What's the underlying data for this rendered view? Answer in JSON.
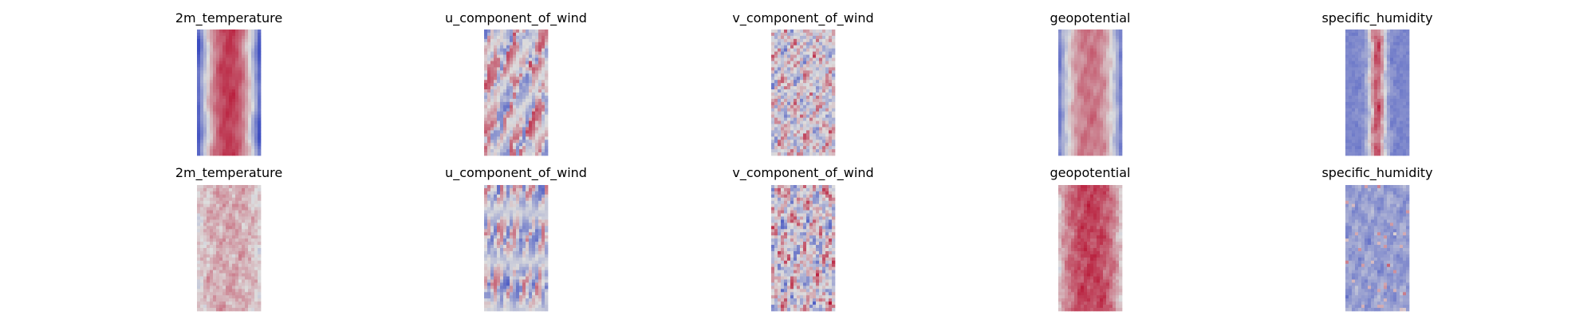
{
  "chart_data": [
    {
      "type": "heatmap",
      "title": "2m_temperature",
      "colormap": "coolwarm",
      "colors": [
        "#3b4cc0",
        "#dddddd",
        "#b40426"
      ],
      "grid": false,
      "axes_visible": false,
      "pattern": "warm-band",
      "seed": 11
    },
    {
      "type": "heatmap",
      "title": "u_component_of_wind",
      "colormap": "coolwarm",
      "colors": [
        "#3b4cc0",
        "#dddddd",
        "#b40426"
      ],
      "grid": false,
      "axes_visible": false,
      "pattern": "streaks",
      "seed": 23
    },
    {
      "type": "heatmap",
      "title": "v_component_of_wind",
      "colormap": "coolwarm",
      "colors": [
        "#3b4cc0",
        "#dddddd",
        "#b40426"
      ],
      "grid": false,
      "axes_visible": false,
      "pattern": "speckle",
      "seed": 37
    },
    {
      "type": "heatmap",
      "title": "geopotential",
      "colormap": "coolwarm",
      "colors": [
        "#3b4cc0",
        "#dddddd",
        "#b40426"
      ],
      "grid": false,
      "axes_visible": false,
      "pattern": "soft-band",
      "seed": 41
    },
    {
      "type": "heatmap",
      "title": "specific_humidity",
      "colormap": "coolwarm",
      "colors": [
        "#3b4cc0",
        "#dddddd",
        "#b40426"
      ],
      "grid": false,
      "axes_visible": false,
      "pattern": "narrow-band",
      "seed": 53
    },
    {
      "type": "heatmap",
      "title": "2m_temperature",
      "colormap": "coolwarm",
      "colors": [
        "#3b4cc0",
        "#dddddd",
        "#b40426"
      ],
      "grid": false,
      "axes_visible": false,
      "pattern": "warm-noise",
      "seed": 61
    },
    {
      "type": "heatmap",
      "title": "u_component_of_wind",
      "colormap": "coolwarm",
      "colors": [
        "#3b4cc0",
        "#dddddd",
        "#b40426"
      ],
      "grid": false,
      "axes_visible": false,
      "pattern": "streaks-cool",
      "seed": 73
    },
    {
      "type": "heatmap",
      "title": "v_component_of_wind",
      "colormap": "coolwarm",
      "colors": [
        "#3b4cc0",
        "#dddddd",
        "#b40426"
      ],
      "grid": false,
      "axes_visible": false,
      "pattern": "speckle-strong",
      "seed": 89
    },
    {
      "type": "heatmap",
      "title": "geopotential",
      "colormap": "coolwarm",
      "colors": [
        "#3b4cc0",
        "#dddddd",
        "#b40426"
      ],
      "grid": false,
      "axes_visible": false,
      "pattern": "hot-band",
      "seed": 97
    },
    {
      "type": "heatmap",
      "title": "specific_humidity",
      "colormap": "coolwarm",
      "colors": [
        "#3b4cc0",
        "#dddddd",
        "#b40426"
      ],
      "grid": false,
      "axes_visible": false,
      "pattern": "cool-dots",
      "seed": 103
    }
  ]
}
